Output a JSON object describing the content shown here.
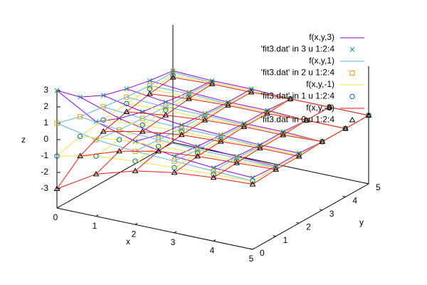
{
  "chart_data": {
    "type": "surface3d",
    "x": [
      0,
      1,
      2,
      3,
      4,
      5
    ],
    "y": [
      0,
      1,
      2,
      3,
      4,
      5
    ],
    "xlim": [
      0,
      5
    ],
    "ylim": [
      0,
      5
    ],
    "zlim": [
      -3,
      3
    ],
    "xticks": [
      0,
      1,
      2,
      3,
      4,
      5
    ],
    "yticks": [
      0,
      1,
      2,
      3,
      4,
      5
    ],
    "zticks": [
      -3,
      -2,
      -1,
      0,
      1,
      2,
      3
    ],
    "xlabel": "x",
    "ylabel": "y",
    "zlabel": "z",
    "series": [
      {
        "name": "f(x,y,3)",
        "color": "#9400d3",
        "style": "lines",
        "values": [
          [
            3,
            1.8,
            1.1,
            0.7,
            0.4,
            0.2
          ],
          [
            1.6,
            1,
            0.6,
            0.4,
            0.2,
            0.1
          ],
          [
            0.9,
            0.5,
            0.3,
            0.2,
            0.1,
            0.1
          ],
          [
            0.5,
            0.3,
            0.2,
            0.1,
            0.1,
            0
          ],
          [
            0.3,
            0.2,
            0.1,
            0.1,
            0,
            0
          ],
          [
            0.2,
            0.1,
            0.1,
            0,
            0,
            0
          ]
        ]
      },
      {
        "name": "'fit3.dat' in 3 u 1:2:4",
        "color": "#009e73",
        "style": "points",
        "marker": "x",
        "values": [
          [
            3,
            1.8,
            1.1,
            0.7,
            0.4,
            0.2
          ],
          [
            1.6,
            1,
            0.6,
            0.4,
            0.2,
            0.1
          ],
          [
            0.9,
            0.5,
            0.3,
            0.2,
            0.1,
            0.1
          ],
          [
            0.5,
            0.3,
            0.2,
            0.1,
            0.1,
            0
          ],
          [
            0.3,
            0.2,
            0.1,
            0.1,
            0,
            0
          ],
          [
            0.2,
            0.1,
            0.1,
            0,
            0,
            0
          ]
        ]
      },
      {
        "name": "f(x,y,1)",
        "color": "#56b4e9",
        "style": "lines",
        "values": [
          [
            1,
            0.6,
            0.4,
            0.2,
            0.1,
            0.1
          ],
          [
            0.5,
            0.3,
            0.2,
            0.1,
            0.1,
            0
          ],
          [
            0.3,
            0.2,
            0.1,
            0.1,
            0,
            0
          ],
          [
            0.2,
            0.1,
            0.1,
            0,
            0,
            0
          ],
          [
            0.1,
            0.1,
            0,
            0,
            0,
            0
          ],
          [
            0,
            0,
            0,
            0,
            0,
            0
          ]
        ]
      },
      {
        "name": "'fit3.dat' in 2 u 1:2:4",
        "color": "#e69f00",
        "style": "points",
        "marker": "square",
        "values": [
          [
            1,
            0.6,
            0.4,
            0.2,
            0.1,
            0.1
          ],
          [
            0.5,
            0.3,
            0.2,
            0.1,
            0.1,
            0
          ],
          [
            0.3,
            0.2,
            0.1,
            0.1,
            0,
            0
          ],
          [
            0.2,
            0.1,
            0.1,
            0,
            0,
            0
          ],
          [
            0.1,
            0.1,
            0,
            0,
            0,
            0
          ],
          [
            0,
            0,
            0,
            0,
            0,
            0
          ]
        ]
      },
      {
        "name": "f(x,y,-1)",
        "color": "#f0e442",
        "style": "lines",
        "values": [
          [
            -1,
            -0.6,
            -0.4,
            -0.2,
            -0.1,
            -0.1
          ],
          [
            -0.5,
            -0.3,
            -0.2,
            -0.1,
            -0.1,
            0
          ],
          [
            -0.3,
            -0.2,
            -0.1,
            -0.1,
            0,
            0
          ],
          [
            -0.2,
            -0.1,
            -0.1,
            0,
            0,
            0
          ],
          [
            -0.1,
            -0.1,
            0,
            0,
            0,
            0
          ],
          [
            0,
            0,
            0,
            0,
            0,
            0
          ]
        ]
      },
      {
        "name": "'fit3.dat' in 1 u 1:2:4",
        "color": "#0072b2",
        "style": "points",
        "marker": "circle",
        "values": [
          [
            -1,
            -0.6,
            -0.4,
            -0.2,
            -0.1,
            -0.1
          ],
          [
            -0.5,
            -0.3,
            -0.2,
            -0.1,
            -0.1,
            0
          ],
          [
            -0.3,
            -0.2,
            -0.1,
            -0.1,
            0,
            0
          ],
          [
            -0.2,
            -0.1,
            -0.1,
            0,
            0,
            0
          ],
          [
            -0.1,
            -0.1,
            0,
            0,
            0,
            0
          ],
          [
            0,
            0,
            0,
            0,
            0,
            0
          ]
        ]
      },
      {
        "name": "f(x,y,-3)",
        "color": "#e51e10",
        "style": "lines",
        "values": [
          [
            -3,
            -1.8,
            -1.1,
            -0.7,
            -0.4,
            -0.2
          ],
          [
            -1.6,
            -1,
            -0.6,
            -0.4,
            -0.2,
            -0.1
          ],
          [
            -0.9,
            -0.5,
            -0.3,
            -0.2,
            -0.1,
            -0.1
          ],
          [
            -0.5,
            -0.3,
            -0.2,
            -0.1,
            -0.1,
            0
          ],
          [
            -0.3,
            -0.2,
            -0.1,
            -0.1,
            0,
            0
          ],
          [
            -0.2,
            -0.1,
            -0.1,
            0,
            0,
            0
          ]
        ]
      },
      {
        "name": "'fit3.dat' in 0 u 1:2:4",
        "color": "#000000",
        "style": "points",
        "marker": "triangle",
        "values": [
          [
            -3,
            -1.8,
            -1.1,
            -0.7,
            -0.4,
            -0.2
          ],
          [
            -1.6,
            -1,
            -0.6,
            -0.4,
            -0.2,
            -0.1
          ],
          [
            -0.9,
            -0.5,
            -0.3,
            -0.2,
            -0.1,
            -0.1
          ],
          [
            -0.5,
            -0.3,
            -0.2,
            -0.1,
            -0.1,
            0
          ],
          [
            -0.3,
            -0.2,
            -0.1,
            -0.1,
            0,
            0
          ],
          [
            -0.2,
            -0.1,
            -0.1,
            0,
            0,
            0
          ]
        ]
      }
    ]
  }
}
